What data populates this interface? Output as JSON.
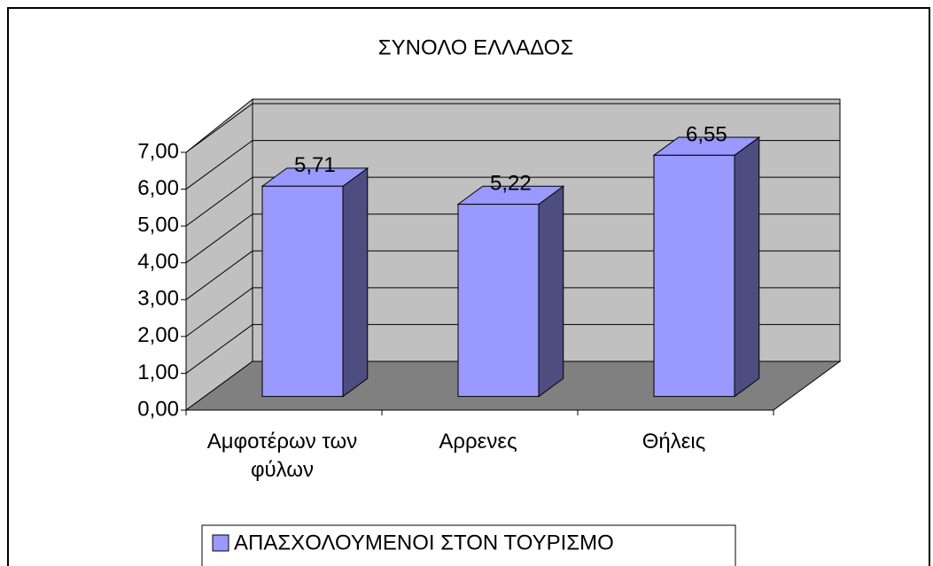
{
  "chart_data": {
    "type": "bar3d",
    "title": "ΣΥΝΟΛΟ ΕΛΛΑΔΟΣ",
    "categories": [
      "Αμφοτέρων των φύλων",
      "Αρρενες",
      "Θήλεις"
    ],
    "series": [
      {
        "name": "ΑΠΑΣΧΟΛΟΥΜΕΝΟΙ ΣΤΟΝ ΤΟΥΡΙΣΜΟ",
        "color": "#9999ff",
        "values": [
          5.71,
          5.22,
          6.55
        ],
        "value_labels": [
          "5,71",
          "5,22",
          "6,55"
        ]
      }
    ],
    "ylim": [
      0,
      7
    ],
    "yticks": [
      {
        "value": 0,
        "label": "0,00"
      },
      {
        "value": 1,
        "label": "1,00"
      },
      {
        "value": 2,
        "label": "2,00"
      },
      {
        "value": 3,
        "label": "3,00"
      },
      {
        "value": 4,
        "label": "4,00"
      },
      {
        "value": 5,
        "label": "5,00"
      },
      {
        "value": 6,
        "label": "6,00"
      },
      {
        "value": 7,
        "label": "7,00"
      }
    ],
    "grid": true,
    "legend": "bottom"
  }
}
